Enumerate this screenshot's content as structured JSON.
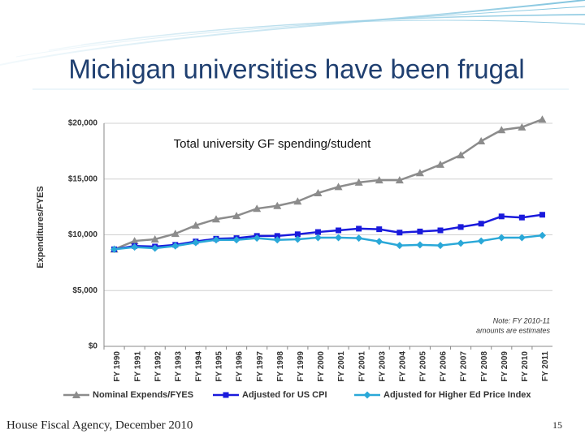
{
  "slide_title": "Michigan universities have been frugal",
  "footer": "House Fiscal Agency, December 2010",
  "page_number": "15",
  "chart_data": {
    "type": "line",
    "title": "Total university GF spending/student",
    "y_label": "Expenditures/FYES",
    "note": [
      "Note: FY 2010-11",
      "amounts are estimates"
    ],
    "categories": [
      "FY 1990",
      "FY 1991",
      "FY 1992",
      "FY 1993",
      "FY 1994",
      "FY 1995",
      "FY 1996",
      "FY 1997",
      "FY 1998",
      "FY 1999",
      "FY 2000",
      "FY 2001",
      "FY 2001",
      "FY 2003",
      "FY 2004",
      "FY 2005",
      "FY 2006",
      "FY 2007",
      "FY 2008",
      "FY 2009",
      "FY 2010",
      "FY 2011"
    ],
    "series": [
      {
        "name": "Nominal Expends/FYES",
        "color": "#8c8c8c",
        "marker": "triangle",
        "values": [
          8700,
          9450,
          9600,
          10100,
          10850,
          11400,
          11700,
          12350,
          12600,
          13000,
          13750,
          14300,
          14700,
          14900,
          14900,
          15550,
          16300,
          17150,
          18400,
          19400,
          19650,
          20350
        ]
      },
      {
        "name": "Adjusted for US CPI",
        "color": "#1a1adc",
        "marker": "square",
        "values": [
          8700,
          9000,
          8950,
          9100,
          9400,
          9650,
          9700,
          9900,
          9900,
          10050,
          10250,
          10400,
          10550,
          10500,
          10200,
          10300,
          10400,
          10700,
          11000,
          11650,
          11550,
          11800
        ]
      },
      {
        "name": "Adjusted for Higher Ed Price Index",
        "color": "#2aa8d8",
        "marker": "diamond",
        "values": [
          8700,
          8900,
          8800,
          9000,
          9300,
          9550,
          9550,
          9700,
          9550,
          9600,
          9750,
          9750,
          9700,
          9400,
          9050,
          9100,
          9050,
          9250,
          9450,
          9750,
          9750,
          9950
        ]
      }
    ],
    "ylim": [
      0,
      20000
    ],
    "yticks": [
      {
        "value": 0,
        "label": "$0"
      },
      {
        "value": 5000,
        "label": "$5,000"
      },
      {
        "value": 10000,
        "label": "$10,000"
      },
      {
        "value": 15000,
        "label": "$15,000"
      },
      {
        "value": 20000,
        "label": "$20,000"
      }
    ],
    "grid": true,
    "legend": "bottom"
  }
}
